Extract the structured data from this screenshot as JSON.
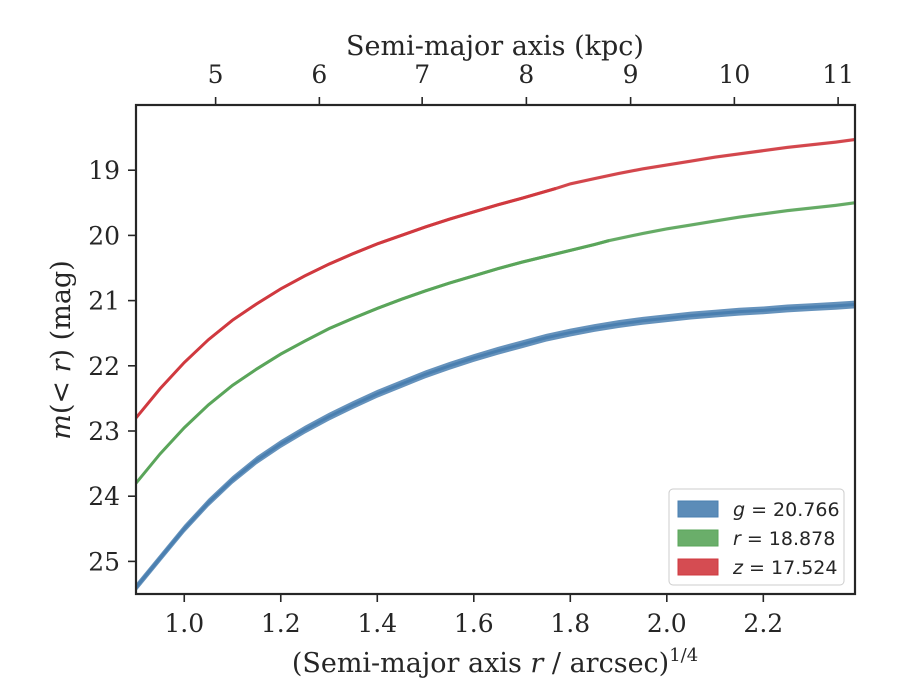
{
  "chart_data": {
    "type": "line",
    "xlabel": "(Semi-major axis r / arcsec)^1/4",
    "ylabel": "m(< r) (mag)",
    "top_xlabel": "Semi-major axis (kpc)",
    "xlim": [
      0.9,
      2.39
    ],
    "ylim": [
      25.5,
      18.0
    ],
    "y_inverted": true,
    "grid": false,
    "legend_position": "bottom-right",
    "x_ticks": [
      "1.0",
      "1.2",
      "1.4",
      "1.6",
      "1.8",
      "2.0",
      "2.2"
    ],
    "x_tick_values": [
      1.0,
      1.2,
      1.4,
      1.6,
      1.8,
      2.0,
      2.2
    ],
    "y_ticks": [
      "19",
      "20",
      "21",
      "22",
      "23",
      "24",
      "25"
    ],
    "y_tick_values": [
      19,
      20,
      21,
      22,
      23,
      24,
      25
    ],
    "top_ticks": [
      "5",
      "6",
      "7",
      "8",
      "9",
      "10",
      "11"
    ],
    "top_tick_values": [
      5,
      6,
      7,
      8,
      9,
      10,
      11
    ],
    "top_tick_x_positions": [
      1.065,
      1.28,
      1.493,
      1.709,
      1.925,
      2.14,
      2.355
    ],
    "series": [
      {
        "name": "g = 20.766",
        "label_var": "g",
        "label_val": "= 20.766",
        "color": "#4a7fb0",
        "band_width": 0.12,
        "x": [
          0.9,
          0.95,
          1.0,
          1.05,
          1.1,
          1.15,
          1.2,
          1.25,
          1.3,
          1.35,
          1.4,
          1.45,
          1.5,
          1.55,
          1.6,
          1.65,
          1.7,
          1.75,
          1.8,
          1.85,
          1.9,
          1.95,
          2.0,
          2.05,
          2.1,
          2.15,
          2.2,
          2.25,
          2.3,
          2.35,
          2.39
        ],
        "y": [
          25.4,
          24.95,
          24.5,
          24.1,
          23.75,
          23.45,
          23.2,
          22.98,
          22.78,
          22.6,
          22.43,
          22.28,
          22.13,
          22.0,
          21.88,
          21.77,
          21.67,
          21.57,
          21.49,
          21.42,
          21.36,
          21.31,
          21.27,
          21.23,
          21.2,
          21.17,
          21.15,
          21.12,
          21.1,
          21.08,
          21.06
        ],
        "solid_until_x": 2.39
      },
      {
        "name": "r = 18.878",
        "label_var": "r",
        "label_val": "= 18.878",
        "color": "#5aa55a",
        "band_width": 0.05,
        "x": [
          0.9,
          0.95,
          1.0,
          1.05,
          1.1,
          1.15,
          1.2,
          1.25,
          1.3,
          1.35,
          1.4,
          1.45,
          1.5,
          1.55,
          1.6,
          1.65,
          1.7,
          1.75,
          1.8,
          1.85,
          1.88,
          1.95,
          2.0,
          2.05,
          2.1,
          2.15,
          2.2,
          2.25,
          2.3,
          2.35,
          2.39
        ],
        "y": [
          23.8,
          23.35,
          22.95,
          22.6,
          22.3,
          22.05,
          21.82,
          21.62,
          21.43,
          21.27,
          21.12,
          20.98,
          20.85,
          20.73,
          20.62,
          20.51,
          20.41,
          20.32,
          20.23,
          20.14,
          20.08,
          19.97,
          19.9,
          19.84,
          19.78,
          19.72,
          19.67,
          19.62,
          19.58,
          19.54,
          19.5
        ],
        "solid_until_x": 1.88
      },
      {
        "name": "z = 17.524",
        "label_var": "z",
        "label_val": "= 17.524",
        "color": "#d0393f",
        "band_width": 0.05,
        "x": [
          0.9,
          0.95,
          1.0,
          1.05,
          1.1,
          1.15,
          1.2,
          1.25,
          1.3,
          1.35,
          1.4,
          1.45,
          1.5,
          1.55,
          1.6,
          1.65,
          1.7,
          1.77,
          1.8,
          1.85,
          1.9,
          1.95,
          2.0,
          2.05,
          2.1,
          2.15,
          2.2,
          2.25,
          2.3,
          2.35,
          2.39
        ],
        "y": [
          22.8,
          22.35,
          21.95,
          21.6,
          21.3,
          21.05,
          20.82,
          20.62,
          20.44,
          20.28,
          20.13,
          20.0,
          19.87,
          19.75,
          19.64,
          19.53,
          19.43,
          19.28,
          19.21,
          19.13,
          19.05,
          18.98,
          18.92,
          18.86,
          18.8,
          18.75,
          18.7,
          18.65,
          18.61,
          18.57,
          18.53
        ],
        "solid_until_x": 1.77
      }
    ]
  }
}
